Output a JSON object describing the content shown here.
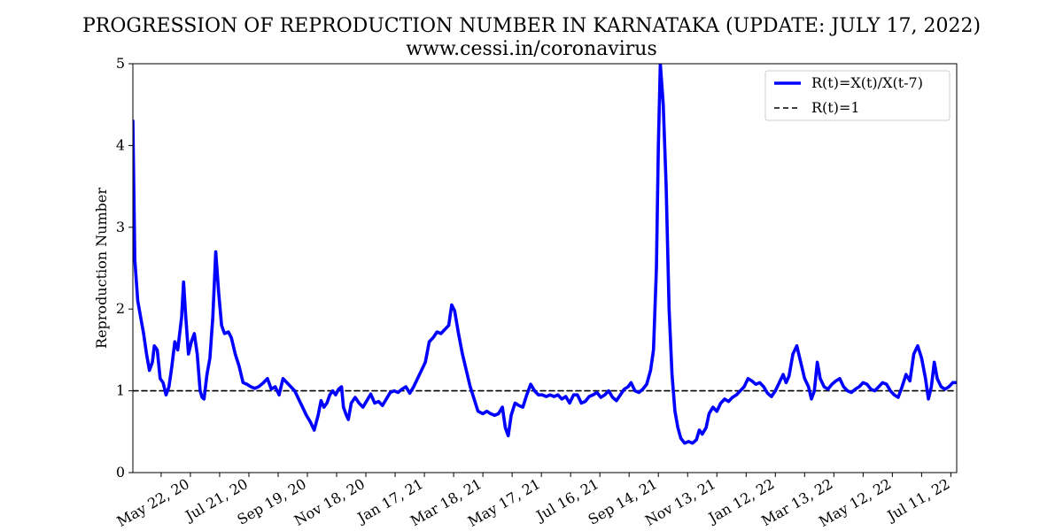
{
  "chart_data": {
    "type": "line",
    "title": "PROGRESSION OF REPRODUCTION NUMBER IN KARNATAKA (UPDATE: JULY 17, 2022)",
    "subtitle": "www.cessi.in/coronavirus",
    "xlabel": "",
    "ylabel": "Reproduction Number",
    "ylim": [
      0,
      5
    ],
    "yticks": [
      0,
      1,
      2,
      3,
      4,
      5
    ],
    "xlim": [
      "2020-03-24",
      "2022-07-17"
    ],
    "xticks": [
      {
        "date": "2020-05-22",
        "label": "May 22, 20"
      },
      {
        "date": "2020-07-21",
        "label": "Jul 21, 20"
      },
      {
        "date": "2020-09-19",
        "label": "Sep 19, 20"
      },
      {
        "date": "2020-11-18",
        "label": "Nov 18, 20"
      },
      {
        "date": "2021-01-17",
        "label": "Jan 17, 21"
      },
      {
        "date": "2021-03-18",
        "label": "Mar 18, 21"
      },
      {
        "date": "2021-05-17",
        "label": "May 17, 21"
      },
      {
        "date": "2021-07-16",
        "label": "Jul 16, 21"
      },
      {
        "date": "2021-09-14",
        "label": "Sep 14, 21"
      },
      {
        "date": "2021-11-13",
        "label": "Nov 13, 21"
      },
      {
        "date": "2022-01-12",
        "label": "Jan 12, 22"
      },
      {
        "date": "2022-03-13",
        "label": "Mar 13, 22"
      },
      {
        "date": "2022-05-12",
        "label": "May 12, 22"
      },
      {
        "date": "2022-07-11",
        "label": "Jul 11, 22"
      }
    ],
    "grid": false,
    "legend_position": "top-right",
    "series": [
      {
        "name": "R(t)=X(t)/X(t-7)",
        "color": "#0000ff",
        "style": "solid",
        "points": [
          [
            "2020-03-24",
            4.3
          ],
          [
            "2020-03-26",
            2.6
          ],
          [
            "2020-03-29",
            2.1
          ],
          [
            "2020-04-01",
            1.9
          ],
          [
            "2020-04-04",
            1.7
          ],
          [
            "2020-04-07",
            1.45
          ],
          [
            "2020-04-10",
            1.25
          ],
          [
            "2020-04-13",
            1.35
          ],
          [
            "2020-04-15",
            1.55
          ],
          [
            "2020-04-18",
            1.5
          ],
          [
            "2020-04-21",
            1.15
          ],
          [
            "2020-04-24",
            1.1
          ],
          [
            "2020-04-27",
            0.95
          ],
          [
            "2020-04-30",
            1.05
          ],
          [
            "2020-05-03",
            1.3
          ],
          [
            "2020-05-06",
            1.6
          ],
          [
            "2020-05-09",
            1.5
          ],
          [
            "2020-05-13",
            1.9
          ],
          [
            "2020-05-15",
            2.33
          ],
          [
            "2020-05-17",
            1.95
          ],
          [
            "2020-05-20",
            1.45
          ],
          [
            "2020-05-23",
            1.6
          ],
          [
            "2020-05-26",
            1.7
          ],
          [
            "2020-05-29",
            1.45
          ],
          [
            "2020-06-01",
            1.0
          ],
          [
            "2020-06-03",
            0.92
          ],
          [
            "2020-06-05",
            0.9
          ],
          [
            "2020-06-08",
            1.2
          ],
          [
            "2020-06-11",
            1.4
          ],
          [
            "2020-06-14",
            1.9
          ],
          [
            "2020-06-17",
            2.7
          ],
          [
            "2020-06-20",
            2.2
          ],
          [
            "2020-06-23",
            1.8
          ],
          [
            "2020-06-26",
            1.7
          ],
          [
            "2020-06-30",
            1.72
          ],
          [
            "2020-07-03",
            1.65
          ],
          [
            "2020-07-07",
            1.45
          ],
          [
            "2020-07-11",
            1.3
          ],
          [
            "2020-07-15",
            1.1
          ],
          [
            "2020-07-19",
            1.08
          ],
          [
            "2020-07-23",
            1.05
          ],
          [
            "2020-07-27",
            1.03
          ],
          [
            "2020-07-31",
            1.05
          ],
          [
            "2020-08-05",
            1.1
          ],
          [
            "2020-08-09",
            1.15
          ],
          [
            "2020-08-13",
            1.02
          ],
          [
            "2020-08-17",
            1.05
          ],
          [
            "2020-08-21",
            0.95
          ],
          [
            "2020-08-25",
            1.15
          ],
          [
            "2020-08-29",
            1.1
          ],
          [
            "2020-09-02",
            1.05
          ],
          [
            "2020-09-06",
            1.0
          ],
          [
            "2020-09-10",
            0.9
          ],
          [
            "2020-09-14",
            0.8
          ],
          [
            "2020-09-18",
            0.7
          ],
          [
            "2020-09-22",
            0.62
          ],
          [
            "2020-09-26",
            0.52
          ],
          [
            "2020-09-30",
            0.7
          ],
          [
            "2020-10-03",
            0.88
          ],
          [
            "2020-10-06",
            0.8
          ],
          [
            "2020-10-09",
            0.85
          ],
          [
            "2020-10-12",
            0.95
          ],
          [
            "2020-10-15",
            1.0
          ],
          [
            "2020-10-18",
            0.95
          ],
          [
            "2020-10-21",
            1.02
          ],
          [
            "2020-10-24",
            1.05
          ],
          [
            "2020-10-26",
            0.8
          ],
          [
            "2020-10-29",
            0.7
          ],
          [
            "2020-10-31",
            0.65
          ],
          [
            "2020-11-03",
            0.85
          ],
          [
            "2020-11-07",
            0.92
          ],
          [
            "2020-11-11",
            0.85
          ],
          [
            "2020-11-15",
            0.8
          ],
          [
            "2020-11-19",
            0.88
          ],
          [
            "2020-11-23",
            0.96
          ],
          [
            "2020-11-27",
            0.85
          ],
          [
            "2020-12-01",
            0.87
          ],
          [
            "2020-12-05",
            0.82
          ],
          [
            "2020-12-09",
            0.9
          ],
          [
            "2020-12-13",
            0.98
          ],
          [
            "2020-12-17",
            1.0
          ],
          [
            "2020-12-21",
            0.98
          ],
          [
            "2020-12-25",
            1.02
          ],
          [
            "2020-12-29",
            1.05
          ],
          [
            "2021-01-02",
            0.97
          ],
          [
            "2021-01-06",
            1.05
          ],
          [
            "2021-01-10",
            1.15
          ],
          [
            "2021-01-14",
            1.25
          ],
          [
            "2021-01-18",
            1.35
          ],
          [
            "2021-01-22",
            1.6
          ],
          [
            "2021-01-26",
            1.65
          ],
          [
            "2021-01-30",
            1.72
          ],
          [
            "2021-02-03",
            1.7
          ],
          [
            "2021-02-07",
            1.75
          ],
          [
            "2021-02-11",
            1.8
          ],
          [
            "2021-02-14",
            2.05
          ],
          [
            "2021-02-17",
            1.98
          ],
          [
            "2021-02-21",
            1.7
          ],
          [
            "2021-02-25",
            1.45
          ],
          [
            "2021-03-01",
            1.25
          ],
          [
            "2021-03-05",
            1.05
          ],
          [
            "2021-03-09",
            0.9
          ],
          [
            "2021-03-13",
            0.75
          ],
          [
            "2021-03-18",
            0.72
          ],
          [
            "2021-03-22",
            0.75
          ],
          [
            "2021-03-26",
            0.72
          ],
          [
            "2021-03-30",
            0.7
          ],
          [
            "2021-04-03",
            0.72
          ],
          [
            "2021-04-07",
            0.8
          ],
          [
            "2021-04-10",
            0.55
          ],
          [
            "2021-04-13",
            0.45
          ],
          [
            "2021-04-16",
            0.7
          ],
          [
            "2021-04-20",
            0.85
          ],
          [
            "2021-04-24",
            0.82
          ],
          [
            "2021-04-28",
            0.8
          ],
          [
            "2021-05-02",
            0.95
          ],
          [
            "2021-05-06",
            1.08
          ],
          [
            "2021-05-10",
            1.0
          ],
          [
            "2021-05-14",
            0.95
          ],
          [
            "2021-05-18",
            0.95
          ],
          [
            "2021-05-22",
            0.93
          ],
          [
            "2021-05-26",
            0.95
          ],
          [
            "2021-05-30",
            0.93
          ],
          [
            "2021-06-03",
            0.95
          ],
          [
            "2021-06-07",
            0.9
          ],
          [
            "2021-06-11",
            0.93
          ],
          [
            "2021-06-15",
            0.85
          ],
          [
            "2021-06-19",
            0.95
          ],
          [
            "2021-06-23",
            0.95
          ],
          [
            "2021-06-27",
            0.85
          ],
          [
            "2021-07-01",
            0.87
          ],
          [
            "2021-07-05",
            0.93
          ],
          [
            "2021-07-09",
            0.95
          ],
          [
            "2021-07-13",
            0.98
          ],
          [
            "2021-07-17",
            0.92
          ],
          [
            "2021-07-21",
            0.95
          ],
          [
            "2021-07-25",
            1.0
          ],
          [
            "2021-07-29",
            0.92
          ],
          [
            "2021-08-02",
            0.88
          ],
          [
            "2021-08-06",
            0.95
          ],
          [
            "2021-08-10",
            1.02
          ],
          [
            "2021-08-14",
            1.05
          ],
          [
            "2021-08-17",
            1.1
          ],
          [
            "2021-08-21",
            1.0
          ],
          [
            "2021-08-25",
            0.98
          ],
          [
            "2021-08-29",
            1.02
          ],
          [
            "2021-09-02",
            1.08
          ],
          [
            "2021-09-06",
            1.25
          ],
          [
            "2021-09-09",
            1.5
          ],
          [
            "2021-09-12",
            2.5
          ],
          [
            "2021-09-14",
            4.0
          ],
          [
            "2021-09-16",
            5.0
          ],
          [
            "2021-09-19",
            4.5
          ],
          [
            "2021-09-22",
            3.5
          ],
          [
            "2021-09-25",
            2.0
          ],
          [
            "2021-09-28",
            1.2
          ],
          [
            "2021-10-01",
            0.75
          ],
          [
            "2021-10-04",
            0.55
          ],
          [
            "2021-10-07",
            0.42
          ],
          [
            "2021-10-11",
            0.36
          ],
          [
            "2021-10-15",
            0.38
          ],
          [
            "2021-10-19",
            0.36
          ],
          [
            "2021-10-23",
            0.4
          ],
          [
            "2021-10-26",
            0.52
          ],
          [
            "2021-10-29",
            0.47
          ],
          [
            "2021-11-02",
            0.55
          ],
          [
            "2021-11-05",
            0.72
          ],
          [
            "2021-11-09",
            0.8
          ],
          [
            "2021-11-13",
            0.75
          ],
          [
            "2021-11-17",
            0.85
          ],
          [
            "2021-11-21",
            0.9
          ],
          [
            "2021-11-25",
            0.87
          ],
          [
            "2021-11-29",
            0.92
          ],
          [
            "2021-12-03",
            0.95
          ],
          [
            "2021-12-07",
            1.0
          ],
          [
            "2021-12-11",
            1.05
          ],
          [
            "2021-12-15",
            1.15
          ],
          [
            "2021-12-19",
            1.12
          ],
          [
            "2021-12-23",
            1.08
          ],
          [
            "2021-12-27",
            1.1
          ],
          [
            "2021-12-31",
            1.05
          ],
          [
            "2022-01-04",
            0.97
          ],
          [
            "2022-01-08",
            0.93
          ],
          [
            "2022-01-12",
            1.0
          ],
          [
            "2022-01-16",
            1.1
          ],
          [
            "2022-01-20",
            1.2
          ],
          [
            "2022-01-23",
            1.1
          ],
          [
            "2022-01-26",
            1.18
          ],
          [
            "2022-01-30",
            1.45
          ],
          [
            "2022-02-03",
            1.55
          ],
          [
            "2022-02-07",
            1.35
          ],
          [
            "2022-02-11",
            1.15
          ],
          [
            "2022-02-15",
            1.05
          ],
          [
            "2022-02-18",
            0.9
          ],
          [
            "2022-02-21",
            1.0
          ],
          [
            "2022-02-24",
            1.35
          ],
          [
            "2022-02-27",
            1.15
          ],
          [
            "2022-03-03",
            1.05
          ],
          [
            "2022-03-07",
            1.02
          ],
          [
            "2022-03-11",
            1.08
          ],
          [
            "2022-03-15",
            1.12
          ],
          [
            "2022-03-19",
            1.15
          ],
          [
            "2022-03-23",
            1.05
          ],
          [
            "2022-03-27",
            1.0
          ],
          [
            "2022-03-31",
            0.98
          ],
          [
            "2022-04-04",
            1.02
          ],
          [
            "2022-04-08",
            1.05
          ],
          [
            "2022-04-12",
            1.1
          ],
          [
            "2022-04-16",
            1.08
          ],
          [
            "2022-04-20",
            1.02
          ],
          [
            "2022-04-24",
            1.0
          ],
          [
            "2022-04-28",
            1.05
          ],
          [
            "2022-05-02",
            1.1
          ],
          [
            "2022-05-06",
            1.08
          ],
          [
            "2022-05-10",
            1.0
          ],
          [
            "2022-05-14",
            0.95
          ],
          [
            "2022-05-18",
            0.92
          ],
          [
            "2022-05-22",
            1.05
          ],
          [
            "2022-05-26",
            1.2
          ],
          [
            "2022-05-30",
            1.12
          ],
          [
            "2022-06-03",
            1.45
          ],
          [
            "2022-06-07",
            1.55
          ],
          [
            "2022-06-11",
            1.4
          ],
          [
            "2022-06-15",
            1.15
          ],
          [
            "2022-06-18",
            0.9
          ],
          [
            "2022-06-21",
            1.05
          ],
          [
            "2022-06-24",
            1.35
          ],
          [
            "2022-06-27",
            1.15
          ],
          [
            "2022-07-01",
            1.05
          ],
          [
            "2022-07-05",
            1.02
          ],
          [
            "2022-07-09",
            1.05
          ],
          [
            "2022-07-13",
            1.1
          ],
          [
            "2022-07-17",
            1.1
          ]
        ]
      },
      {
        "name": "R(t)=1",
        "color": "#000000",
        "style": "dashed",
        "points": [
          [
            "2020-03-24",
            1
          ],
          [
            "2022-07-17",
            1
          ]
        ]
      }
    ]
  }
}
